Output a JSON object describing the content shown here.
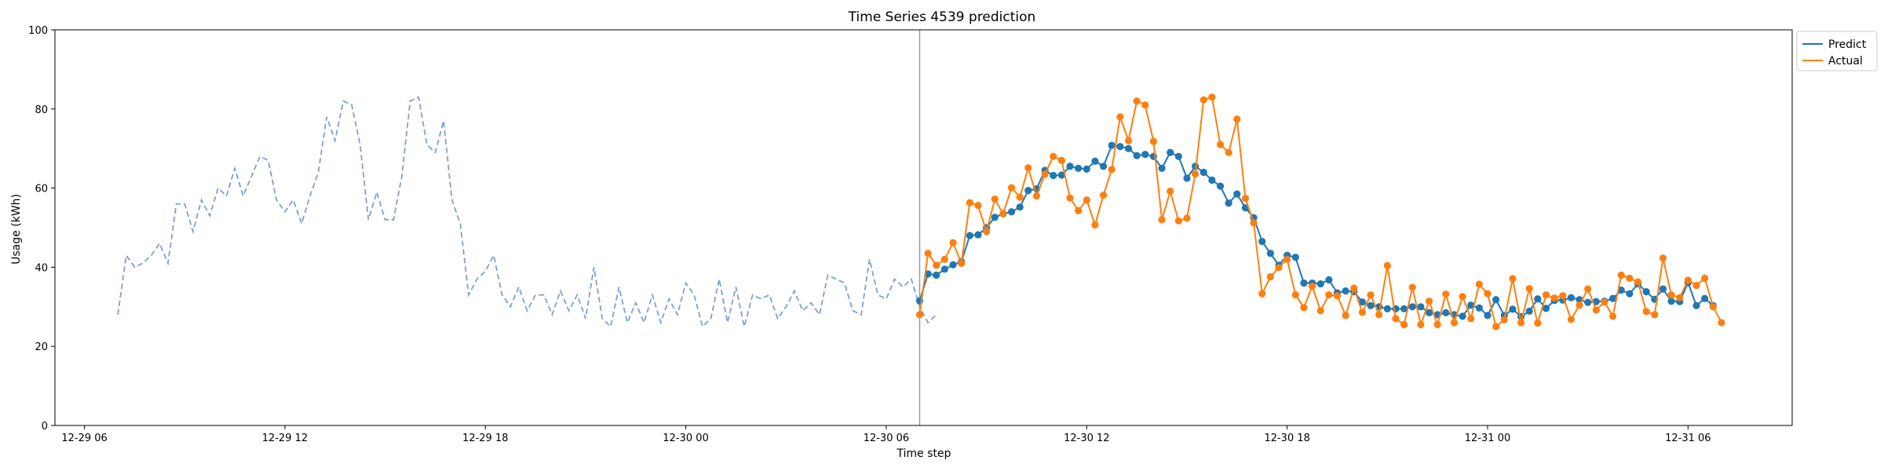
{
  "chart_data": {
    "type": "line",
    "title": "Time Series 4539 prediction",
    "xlabel": "Time step",
    "ylabel": "Usage (kWh)",
    "ylim": [
      0,
      100
    ],
    "xlim": [
      "2024-12-29T05:07",
      "2024-12-31T09:07"
    ],
    "yticks": [
      0,
      20,
      40,
      60,
      80,
      100
    ],
    "xticks": [
      {
        "t": "2024-12-29T06:00",
        "label": "12-29 06"
      },
      {
        "t": "2024-12-29T12:00",
        "label": "12-29 12"
      },
      {
        "t": "2024-12-29T18:00",
        "label": "12-29 18"
      },
      {
        "t": "2024-12-30T00:00",
        "label": "12-30 00"
      },
      {
        "t": "2024-12-30T06:00",
        "label": "12-30 06"
      },
      {
        "t": "2024-12-30T12:00",
        "label": "12-30 12"
      },
      {
        "t": "2024-12-30T18:00",
        "label": "12-30 18"
      },
      {
        "t": "2024-12-31T00:00",
        "label": "12-31 00"
      },
      {
        "t": "2024-12-31T06:00",
        "label": "12-31 06"
      }
    ],
    "grid": false,
    "legend_position": "upper right, outside",
    "forecast_start": "2024-12-30T07:00",
    "history": {
      "start": "2024-12-29T07:00",
      "step_minutes": 15,
      "color": "#7f9fcf",
      "style": "dashed",
      "values": [
        28,
        43,
        40,
        41,
        43,
        46,
        41,
        56,
        56,
        49,
        57,
        53,
        60,
        58,
        65,
        58,
        63,
        68,
        67,
        57,
        54,
        57,
        51,
        58,
        64,
        78,
        72,
        82,
        81,
        71,
        52,
        59,
        52,
        52,
        63,
        82,
        83,
        71,
        69,
        77,
        57,
        51,
        33,
        37,
        39,
        43,
        33,
        30,
        35,
        29,
        33,
        33,
        28,
        34,
        29,
        33,
        27,
        40,
        27,
        25,
        35,
        26,
        31,
        26,
        33,
        26,
        32,
        28,
        36,
        33,
        25,
        27,
        37,
        26,
        35,
        25,
        33,
        32,
        33,
        27,
        30,
        34,
        29,
        31,
        28,
        38,
        37,
        36,
        29,
        28,
        42,
        33,
        32,
        37,
        35,
        37,
        30,
        26,
        28
      ]
    },
    "series": [
      {
        "name": "Predict",
        "color": "#1f77b4",
        "start": "2024-12-30T07:00",
        "step_minutes": 15,
        "values": [
          31.5,
          38.3,
          38,
          39.5,
          40.6,
          41.4,
          48,
          48.2,
          50,
          52.6,
          53.5,
          54,
          55.2,
          59.4,
          59.8,
          64.5,
          63.2,
          63.3,
          65.5,
          65,
          64.8,
          66.8,
          65.5,
          70.8,
          70.5,
          70,
          68.2,
          68.5,
          68,
          65,
          69,
          68,
          62.5,
          65.5,
          64,
          62,
          60.5,
          56.2,
          58.5,
          55,
          52.5,
          46.5,
          43.5,
          40.5,
          43,
          42.5,
          36,
          36,
          35.8,
          36.8,
          33.5,
          34,
          33.8,
          31.2,
          30.3,
          30,
          29.5,
          29.5,
          29.5,
          30,
          30,
          28.5,
          28,
          28.5,
          28,
          27.6,
          30.4,
          29.7,
          27.8,
          31.8,
          27.8,
          29.4,
          27.5,
          28.9,
          32,
          29.6,
          31.6,
          31.7,
          32.3,
          31.8,
          31.1,
          31.3,
          31.4,
          32.1,
          34.2,
          33.3,
          35.8,
          33.8,
          31.9,
          34.5,
          31.4,
          31.3,
          36.1,
          30.3,
          32.1,
          30.3
        ]
      },
      {
        "name": "Actual",
        "color": "#ff7f0e",
        "start": "2024-12-30T07:00",
        "step_minutes": 15,
        "values": [
          28,
          43.5,
          40.5,
          42,
          46.2,
          41,
          56.3,
          55.6,
          49,
          57.2,
          53.5,
          60.1,
          57.7,
          65.1,
          58,
          63.5,
          68,
          67,
          57.5,
          54.3,
          57,
          50.7,
          58.2,
          64.7,
          78,
          72,
          82,
          81,
          71.8,
          52,
          59.2,
          51.7,
          52.4,
          63.6,
          82.3,
          83,
          71,
          69,
          77.4,
          57.4,
          51.2,
          33.3,
          37.6,
          39.9,
          42,
          33,
          29.8,
          35.2,
          29,
          33,
          32.8,
          27.8,
          34.7,
          28.6,
          33,
          28,
          40.4,
          27,
          25.5,
          34.9,
          25.5,
          31.4,
          25.5,
          33.2,
          26,
          32.6,
          27,
          35.7,
          33.3,
          25,
          26.7,
          37.1,
          26,
          34.6,
          25.9,
          33,
          32.2,
          32.8,
          26.8,
          30.4,
          34.5,
          29.2,
          31.2,
          27.6,
          38,
          37.2,
          36.3,
          28.8,
          28,
          42.3,
          33,
          32.3,
          36.7,
          35.4,
          37.2,
          30,
          26
        ]
      }
    ]
  }
}
